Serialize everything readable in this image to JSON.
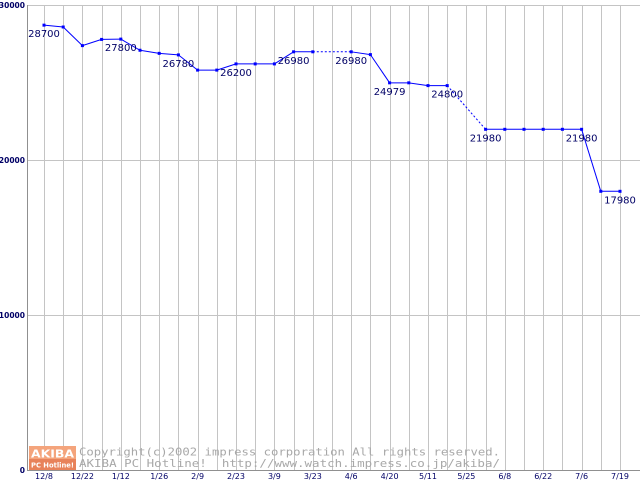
{
  "chart_data": {
    "type": "line",
    "categories": [
      "12/8",
      "",
      "12/22",
      "",
      "1/12",
      "",
      "1/26",
      "",
      "2/9",
      "",
      "2/23",
      "",
      "3/9",
      "",
      "3/23",
      "",
      "4/6",
      "",
      "4/20",
      "",
      "5/11",
      "",
      "5/25",
      "",
      "6/8",
      "",
      "6/22",
      "",
      "7/6",
      "",
      "7/19"
    ],
    "series": [
      {
        "values": [
          28700,
          28580,
          27380,
          27780,
          27800,
          27080,
          26880,
          26780,
          25800,
          25800,
          26200,
          26200,
          26200,
          26980,
          26980,
          null,
          26980,
          26800,
          24979,
          24979,
          24800,
          24800,
          null,
          21980,
          21980,
          21980,
          21980,
          21980,
          21980,
          17980,
          17980
        ],
        "color": "#0000ff"
      }
    ],
    "labeled_points": [
      0,
      4,
      7,
      10,
      13,
      16,
      18,
      21,
      23,
      28,
      30
    ],
    "yticks": [
      0,
      10000,
      20000,
      30000
    ],
    "ylim": [
      0,
      30000
    ],
    "grid": true
  },
  "watermark": {
    "logo_top": "AKIBA",
    "logo_bottom": "PC Hotline!",
    "copyright": "Copyright(c)2002 impress corporation All rights reserved.",
    "site": "AKIBA PC Hotline!  http://www.watch.impress.co.jp/akiba/"
  },
  "colors": {
    "grid": "#c4c4c4",
    "axis": "#909090",
    "text": "#000066",
    "watermark_text": "#a8a8a8",
    "logo_fill": "#f4a47c",
    "logo_strip": "#e8825a",
    "logo_text": "#ffffff"
  }
}
